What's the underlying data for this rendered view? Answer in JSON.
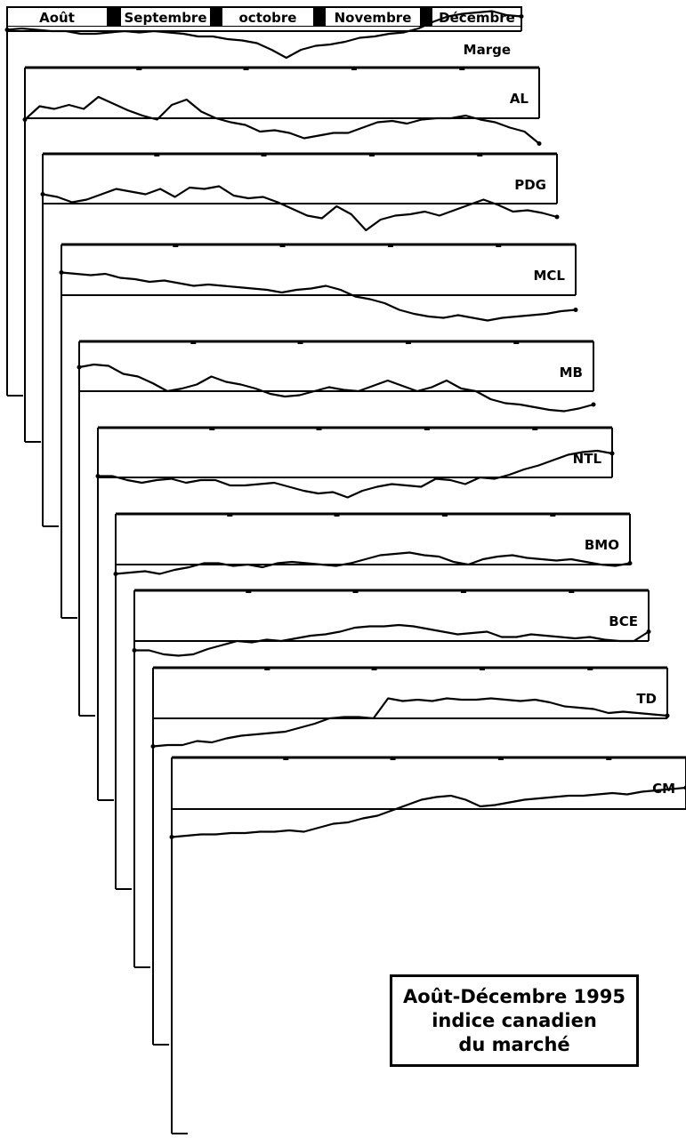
{
  "months": [
    "Août",
    "Septembre",
    "octobre",
    "Novembre",
    "Décembre"
  ],
  "caption": {
    "line1": "Août-Décembre 1995",
    "line2": "indice canadien",
    "line3": "du marché"
  },
  "colors": {
    "ink": "#000000",
    "paper": "#ffffff"
  },
  "chart_data": {
    "type": "line",
    "x_unit": "mois (août–décembre 1995)",
    "series": [
      {
        "name": "Marge",
        "values": [
          0.05,
          0.1,
          0.05,
          0.0,
          0.0,
          -0.1,
          -0.1,
          -0.05,
          0.0,
          -0.05,
          0.0,
          -0.05,
          -0.1,
          -0.2,
          -0.2,
          -0.3,
          -0.35,
          -0.45,
          -0.7,
          -1.0,
          -0.7,
          -0.55,
          -0.5,
          -0.4,
          -0.25,
          -0.2,
          -0.1,
          -0.05,
          0.1,
          0.35,
          0.55,
          0.65,
          0.7,
          0.75,
          0.6,
          0.55
        ]
      },
      {
        "name": "AL",
        "values": [
          -0.05,
          0.45,
          0.35,
          0.5,
          0.35,
          0.8,
          0.55,
          0.3,
          0.1,
          -0.05,
          0.5,
          0.7,
          0.25,
          0.0,
          -0.15,
          -0.25,
          -0.5,
          -0.45,
          -0.55,
          -0.75,
          -0.65,
          -0.55,
          -0.55,
          -0.35,
          -0.15,
          -0.1,
          -0.2,
          -0.05,
          0.0,
          0.0,
          0.1,
          -0.05,
          -0.15,
          -0.35,
          -0.5,
          -0.95
        ]
      },
      {
        "name": "PDG",
        "values": [
          0.35,
          0.25,
          0.05,
          0.15,
          0.35,
          0.55,
          0.45,
          0.35,
          0.55,
          0.25,
          0.6,
          0.55,
          0.65,
          0.3,
          0.2,
          0.25,
          0.05,
          -0.2,
          -0.45,
          -0.55,
          -0.1,
          -0.4,
          -1.0,
          -0.6,
          -0.45,
          -0.4,
          -0.3,
          -0.45,
          -0.25,
          -0.05,
          0.15,
          -0.05,
          -0.3,
          -0.25,
          -0.35,
          -0.5
        ]
      },
      {
        "name": "MCL",
        "values": [
          0.85,
          0.8,
          0.75,
          0.8,
          0.65,
          0.6,
          0.5,
          0.55,
          0.45,
          0.35,
          0.4,
          0.35,
          0.3,
          0.25,
          0.2,
          0.1,
          0.2,
          0.25,
          0.35,
          0.2,
          -0.05,
          -0.15,
          -0.3,
          -0.55,
          -0.7,
          -0.8,
          -0.85,
          -0.75,
          -0.85,
          -0.95,
          -0.85,
          -0.8,
          -0.75,
          -0.7,
          -0.6,
          -0.55
        ]
      },
      {
        "name": "MB",
        "values": [
          0.9,
          1.0,
          0.95,
          0.65,
          0.55,
          0.3,
          0.0,
          0.1,
          0.25,
          0.55,
          0.35,
          0.25,
          0.1,
          -0.1,
          -0.2,
          -0.15,
          0.0,
          0.15,
          0.05,
          0.0,
          0.2,
          0.4,
          0.2,
          0.0,
          0.15,
          0.4,
          0.1,
          0.0,
          -0.3,
          -0.45,
          -0.5,
          -0.6,
          -0.7,
          -0.75,
          -0.65,
          -0.5
        ]
      },
      {
        "name": "NTL",
        "values": [
          0.05,
          0.05,
          -0.1,
          -0.2,
          -0.1,
          -0.05,
          -0.2,
          -0.1,
          -0.1,
          -0.3,
          -0.3,
          -0.25,
          -0.2,
          -0.35,
          -0.5,
          -0.6,
          -0.55,
          -0.75,
          -0.5,
          -0.35,
          -0.25,
          -0.3,
          -0.35,
          -0.05,
          -0.1,
          -0.25,
          0.0,
          -0.05,
          0.1,
          0.3,
          0.45,
          0.65,
          0.85,
          0.95,
          1.0,
          0.9
        ]
      },
      {
        "name": "BMO",
        "values": [
          -0.35,
          -0.3,
          -0.25,
          -0.35,
          -0.2,
          -0.1,
          0.05,
          0.05,
          -0.05,
          0.0,
          -0.1,
          0.05,
          0.1,
          0.05,
          0.0,
          -0.05,
          0.05,
          0.2,
          0.35,
          0.4,
          0.45,
          0.35,
          0.3,
          0.1,
          0.0,
          0.2,
          0.3,
          0.35,
          0.25,
          0.2,
          0.15,
          0.2,
          0.1,
          0.0,
          -0.05,
          0.05
        ]
      },
      {
        "name": "BCE",
        "values": [
          -0.35,
          -0.35,
          -0.5,
          -0.55,
          -0.5,
          -0.3,
          -0.15,
          0.0,
          -0.05,
          0.05,
          0.0,
          0.1,
          0.2,
          0.25,
          0.35,
          0.5,
          0.55,
          0.55,
          0.6,
          0.55,
          0.45,
          0.35,
          0.25,
          0.3,
          0.35,
          0.15,
          0.15,
          0.25,
          0.2,
          0.15,
          0.1,
          0.15,
          0.05,
          0.0,
          0.0,
          0.35
        ]
      },
      {
        "name": "TD",
        "values": [
          -1.05,
          -1.0,
          -1.0,
          -0.85,
          -0.9,
          -0.75,
          -0.65,
          -0.6,
          -0.55,
          -0.5,
          -0.35,
          -0.2,
          0.0,
          0.05,
          0.05,
          0.0,
          0.75,
          0.65,
          0.7,
          0.65,
          0.75,
          0.7,
          0.7,
          0.75,
          0.7,
          0.65,
          0.7,
          0.6,
          0.45,
          0.4,
          0.35,
          0.2,
          0.25,
          0.2,
          0.15,
          0.1
        ]
      },
      {
        "name": "CM",
        "values": [
          -1.05,
          -1.0,
          -0.95,
          -0.95,
          -0.9,
          -0.9,
          -0.85,
          -0.85,
          -0.8,
          -0.85,
          -0.7,
          -0.55,
          -0.5,
          -0.35,
          -0.25,
          -0.05,
          0.15,
          0.35,
          0.45,
          0.5,
          0.35,
          0.1,
          0.15,
          0.25,
          0.35,
          0.4,
          0.45,
          0.5,
          0.5,
          0.55,
          0.6,
          0.55,
          0.65,
          0.7,
          0.75,
          0.8
        ]
      }
    ]
  }
}
